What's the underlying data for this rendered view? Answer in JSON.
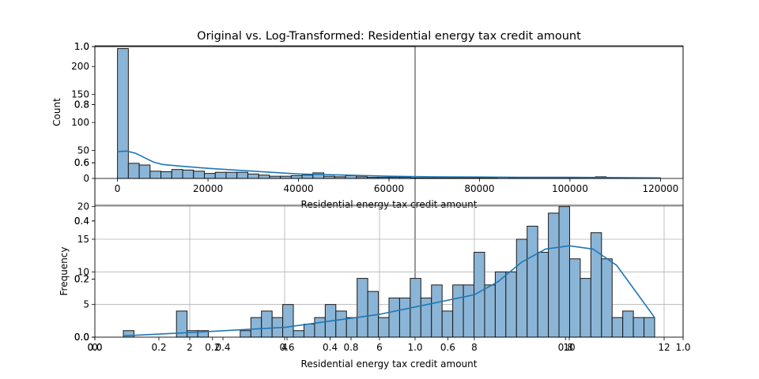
{
  "title": "Original vs. Log-Transformed: Residential energy tax credit amount",
  "colors": {
    "bar_fill": "#8bb5d6",
    "bar_edge": "#1a1a1a",
    "kde_line": "#1f77b4",
    "grid": "#b0b0b0",
    "axes": "#000000"
  },
  "chart_data": [
    {
      "type": "bar",
      "variant": "histogram-with-kde",
      "title": "Original vs. Log-Transformed: Residential energy tax credit amount",
      "xlabel": "Residential energy tax credit amount",
      "ylabel": "Count",
      "xlim": [
        -5000,
        125000
      ],
      "ylim": [
        0,
        237
      ],
      "xticks": [
        0,
        20000,
        40000,
        60000,
        80000,
        100000,
        120000
      ],
      "xtick_labels": [
        "0",
        "20000",
        "40000",
        "60000",
        "80000",
        "100000",
        "120000"
      ],
      "yticks": [
        0,
        50,
        100,
        150,
        200
      ],
      "ytick_labels": [
        "0",
        "50",
        "100",
        "150",
        "200"
      ],
      "bin_start": 0,
      "bin_width": 2400,
      "values": [
        232,
        27,
        24,
        13,
        12,
        16,
        15,
        13,
        9,
        11,
        11,
        11,
        8,
        6,
        4,
        4,
        5,
        6,
        10,
        4,
        3,
        5,
        3,
        2,
        2,
        2,
        2,
        1,
        1,
        1,
        1,
        1,
        1,
        1,
        1,
        2,
        1,
        1,
        1,
        1,
        1,
        1,
        1,
        1,
        3,
        1,
        1,
        1,
        1,
        1
      ],
      "kde": {
        "x": [
          0,
          2000,
          4000,
          6000,
          8000,
          10000,
          14000,
          20000,
          30000,
          40000,
          50000,
          60000,
          70000,
          80000,
          90000,
          100000,
          110000,
          120000
        ],
        "y": [
          48,
          49,
          45,
          37,
          29,
          25,
          22,
          18,
          13,
          8,
          6,
          4,
          3,
          2.5,
          2,
          2,
          1.5,
          1
        ]
      },
      "grid": false
    },
    {
      "type": "bar",
      "variant": "histogram-with-kde",
      "title": "",
      "xlabel": "Residential energy tax credit amount",
      "ylabel": "Frequency",
      "xlim": [
        0,
        12.4
      ],
      "ylim": [
        0,
        20.2
      ],
      "xticks": [
        0,
        2,
        4,
        6,
        8,
        10,
        12
      ],
      "xtick_labels": [
        "0",
        "2",
        "4",
        "6",
        "8",
        "10",
        "12"
      ],
      "yticks": [
        0,
        5,
        10,
        15,
        20
      ],
      "ytick_labels": [
        "0",
        "5",
        "10",
        "15",
        "20"
      ],
      "bin_start": 0.6,
      "bin_width": 0.224,
      "values": [
        1,
        0,
        0,
        0,
        0,
        4,
        1,
        1,
        0,
        0,
        0,
        1,
        3,
        4,
        3,
        5,
        1,
        2,
        3,
        5,
        4,
        3,
        9,
        7,
        3,
        6,
        6,
        9,
        6,
        8,
        4,
        8,
        8,
        13,
        8,
        10,
        10,
        15,
        17,
        13,
        19,
        20,
        12,
        9,
        16,
        12,
        3,
        4,
        3,
        3
      ],
      "kde": {
        "x": [
          0.6,
          2,
          4,
          5,
          6,
          7,
          8,
          8.5,
          9,
          9.5,
          10,
          10.5,
          11,
          11.5,
          11.8
        ],
        "y": [
          0.2,
          0.7,
          1.5,
          2.5,
          3.5,
          5,
          6.5,
          8.5,
          11.5,
          13.5,
          14,
          13.5,
          11,
          6,
          3
        ]
      },
      "grid": true
    },
    {
      "type": "line",
      "variant": "overlaid-empty-axes",
      "xlim": [
        0,
        1
      ],
      "ylim": [
        0,
        1
      ],
      "xticks": [
        0,
        0.2,
        0.4,
        0.6,
        0.8,
        1.0
      ],
      "xtick_labels": [
        "0.0",
        "0.2",
        "0.4",
        "0.6",
        "0.8",
        "1.0"
      ],
      "yticks": [
        0,
        0.2,
        0.4,
        0.6,
        0.8,
        1.0
      ],
      "ytick_labels": [
        "0.0",
        "0.2",
        "0.4",
        "0.6",
        "0.8",
        "1.0"
      ],
      "series": []
    },
    {
      "type": "line",
      "variant": "overlaid-empty-axes",
      "xlim": [
        0,
        1
      ],
      "ylim": [
        0,
        1
      ],
      "xticks": [
        0,
        0.2,
        0.4,
        0.6,
        0.8,
        1.0
      ],
      "xtick_labels": [
        "0.0",
        "0.2",
        "0.4",
        "0.6",
        "0.8",
        "1.0"
      ],
      "yticks": [
        0,
        0.2,
        0.4,
        0.6,
        0.8,
        1.0
      ],
      "ytick_labels": [
        "0.0",
        "0.2",
        "0.4",
        "0.6",
        "0.8",
        "1.0"
      ],
      "series": []
    }
  ]
}
